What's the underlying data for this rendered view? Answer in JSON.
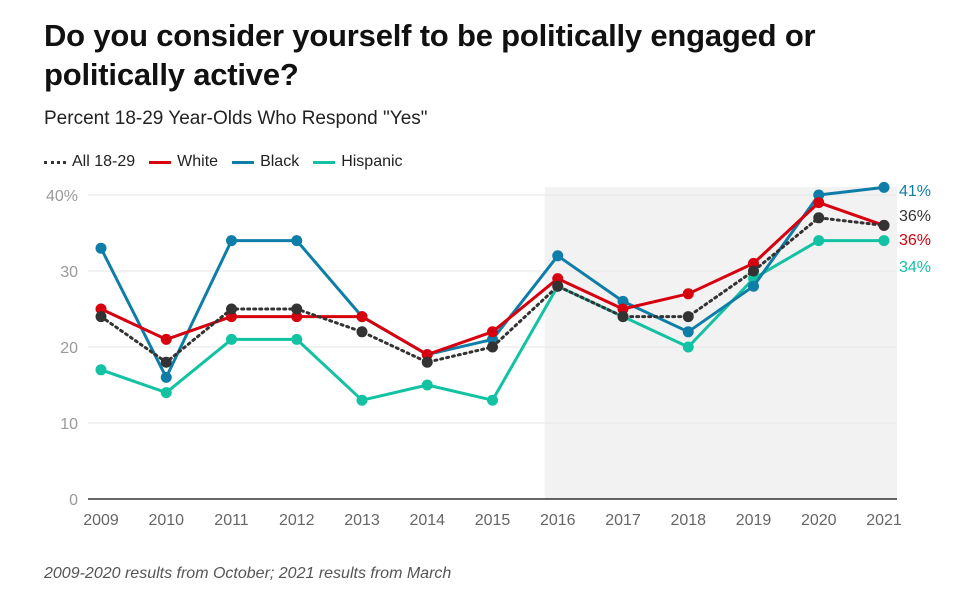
{
  "chart_data": {
    "type": "line",
    "title": "Do you consider yourself to be politically engaged or politically active?",
    "subtitle": "Percent 18-29 Year-Olds Who Respond \"Yes\"",
    "xlabel": "",
    "ylabel": "",
    "x": [
      "2009",
      "2010",
      "2011",
      "2012",
      "2013",
      "2014",
      "2015",
      "2016",
      "2017",
      "2018",
      "2019",
      "2020",
      "2021"
    ],
    "ylim": [
      0,
      40
    ],
    "yticks": [
      0,
      10,
      20,
      30,
      40
    ],
    "ytick_labels": [
      "0",
      "10",
      "20",
      "30",
      "40%"
    ],
    "grid": true,
    "legend_position": "top-left",
    "shaded_range": [
      "2016",
      "2021"
    ],
    "series": [
      {
        "name": "All 18-29",
        "style": "dotted",
        "color": "#333333",
        "values": [
          24,
          18,
          25,
          25,
          22,
          18,
          20,
          28,
          24,
          24,
          30,
          37,
          36
        ],
        "end_label": "36%"
      },
      {
        "name": "White",
        "style": "solid",
        "color": "#d7000f",
        "values": [
          25,
          21,
          24,
          24,
          24,
          19,
          22,
          29,
          25,
          27,
          31,
          39,
          36
        ],
        "end_label": "36%"
      },
      {
        "name": "Black",
        "style": "solid",
        "color": "#0e7ea8",
        "values": [
          33,
          16,
          34,
          34,
          24,
          19,
          21,
          32,
          26,
          22,
          28,
          40,
          41
        ],
        "end_label": "41%"
      },
      {
        "name": "Hispanic",
        "style": "solid",
        "color": "#13c2a3",
        "values": [
          17,
          14,
          21,
          21,
          13,
          15,
          13,
          28,
          24,
          20,
          29,
          34,
          34
        ],
        "end_label": "34%"
      }
    ],
    "end_label_order": [
      "Black",
      "All 18-29",
      "White",
      "Hispanic"
    ]
  },
  "footnote": "2009-2020 results from October; 2021 results from March",
  "colors": {
    "grid": "#e6e6e6",
    "axis": "#333333",
    "shade": "#f2f2f2"
  }
}
